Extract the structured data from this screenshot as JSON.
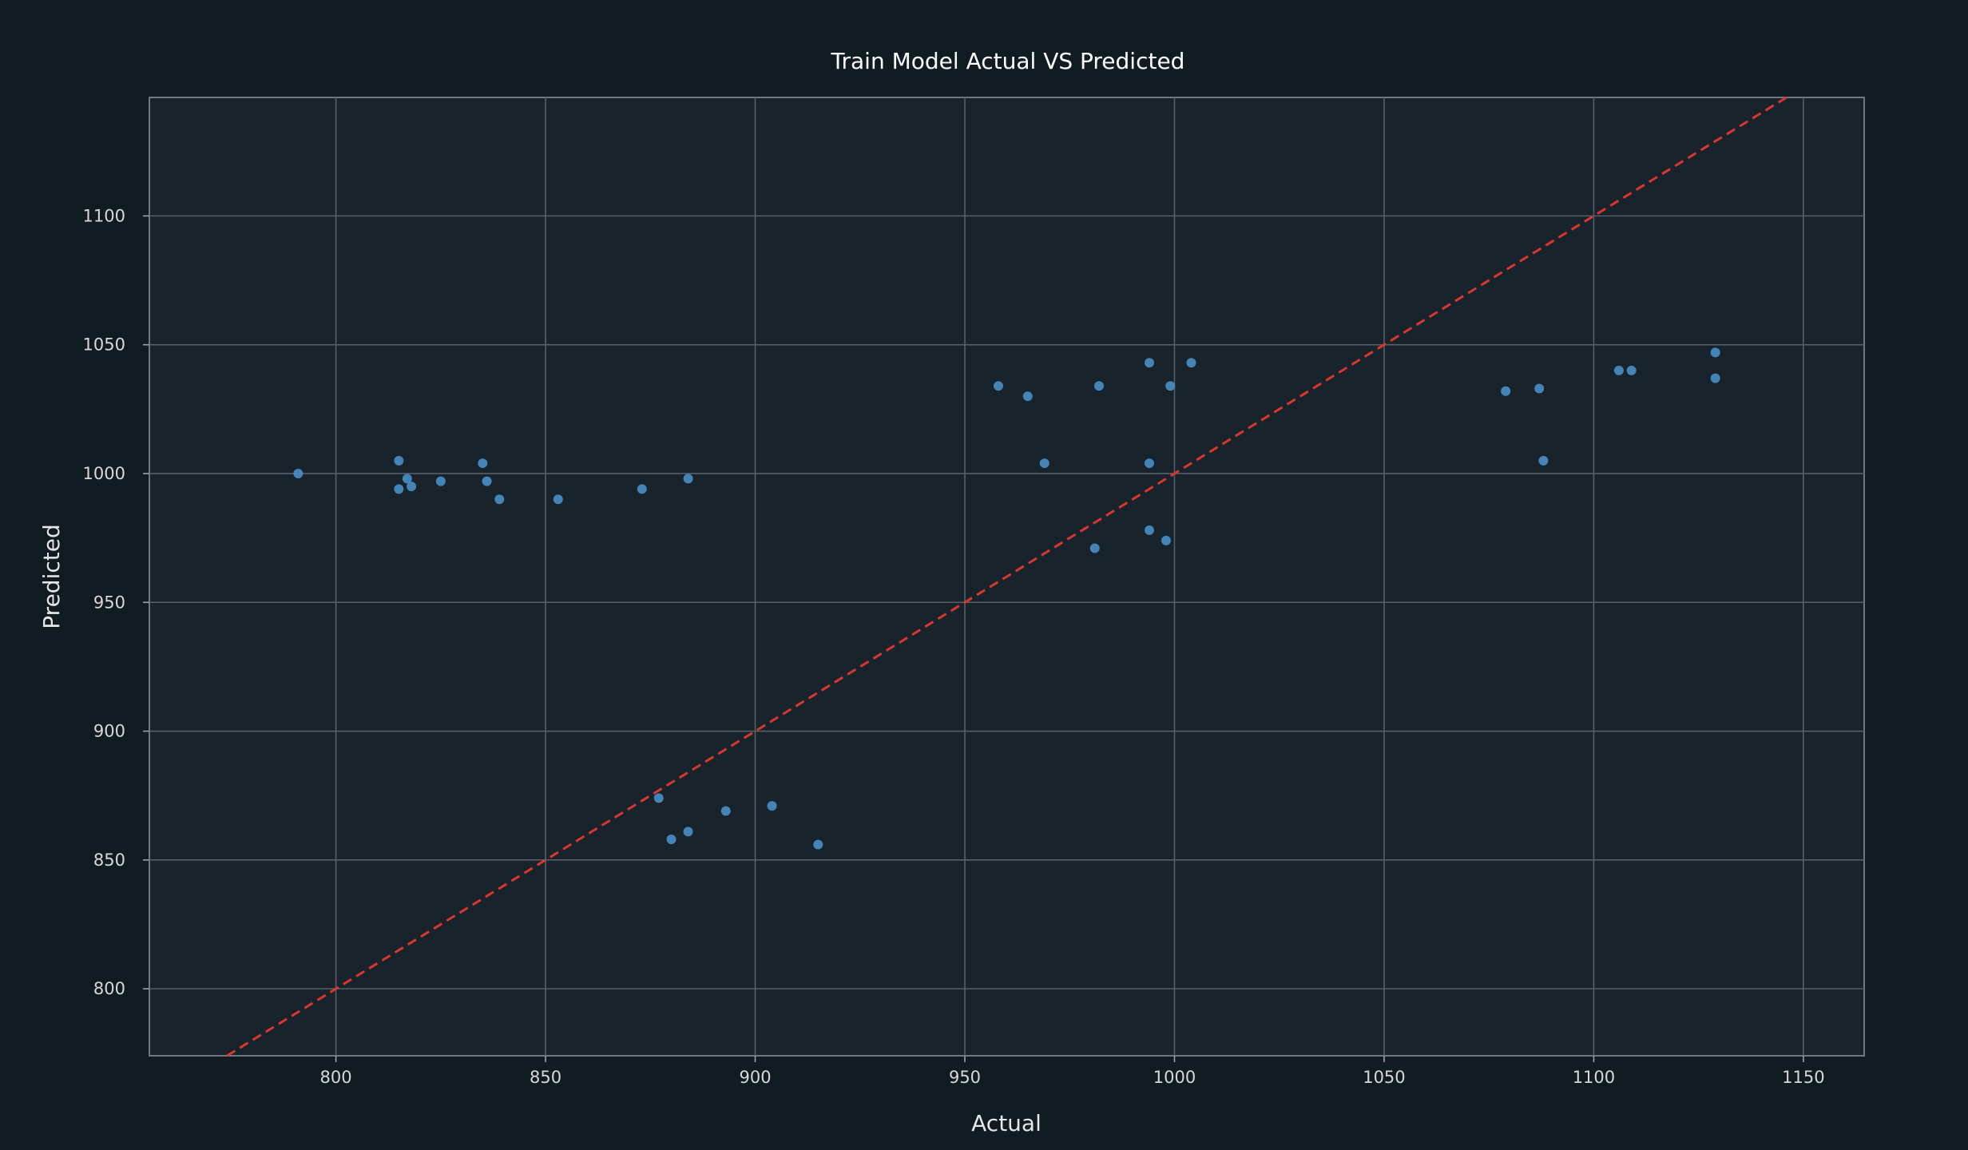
{
  "chart_data": {
    "type": "scatter",
    "title": "Train Model Actual VS Predicted",
    "xlabel": "Actual",
    "ylabel": "Predicted",
    "xlim": [
      755.5,
      1164.5
    ],
    "ylim": [
      774,
      1146
    ],
    "xticks": [
      800,
      850,
      900,
      950,
      1000,
      1050,
      1100,
      1150
    ],
    "yticks": [
      800,
      850,
      900,
      950,
      1000,
      1050,
      1100
    ],
    "grid": true,
    "point_color": "#4a8fc7",
    "reference_line": {
      "style": "dashed",
      "color": "#d9372e",
      "x": [
        755.5,
        1164.5
      ],
      "y": [
        755.5,
        1164.5
      ]
    },
    "points": [
      {
        "x": 791,
        "y": 1000
      },
      {
        "x": 815,
        "y": 1005
      },
      {
        "x": 815,
        "y": 994
      },
      {
        "x": 817,
        "y": 998
      },
      {
        "x": 818,
        "y": 995
      },
      {
        "x": 825,
        "y": 997
      },
      {
        "x": 835,
        "y": 1004
      },
      {
        "x": 836,
        "y": 997
      },
      {
        "x": 839,
        "y": 990
      },
      {
        "x": 853,
        "y": 990
      },
      {
        "x": 873,
        "y": 994
      },
      {
        "x": 884,
        "y": 998
      },
      {
        "x": 877,
        "y": 874
      },
      {
        "x": 880,
        "y": 858
      },
      {
        "x": 884,
        "y": 861
      },
      {
        "x": 893,
        "y": 869
      },
      {
        "x": 904,
        "y": 871
      },
      {
        "x": 915,
        "y": 856
      },
      {
        "x": 958,
        "y": 1034
      },
      {
        "x": 965,
        "y": 1030
      },
      {
        "x": 969,
        "y": 1004
      },
      {
        "x": 981,
        "y": 971
      },
      {
        "x": 982,
        "y": 1034
      },
      {
        "x": 994,
        "y": 1043
      },
      {
        "x": 994,
        "y": 1004
      },
      {
        "x": 994,
        "y": 978
      },
      {
        "x": 998,
        "y": 974
      },
      {
        "x": 999,
        "y": 1034
      },
      {
        "x": 1004,
        "y": 1043
      },
      {
        "x": 1079,
        "y": 1032
      },
      {
        "x": 1087,
        "y": 1033
      },
      {
        "x": 1088,
        "y": 1005
      },
      {
        "x": 1106,
        "y": 1040
      },
      {
        "x": 1109,
        "y": 1040
      },
      {
        "x": 1129,
        "y": 1047
      },
      {
        "x": 1129,
        "y": 1037
      }
    ]
  }
}
